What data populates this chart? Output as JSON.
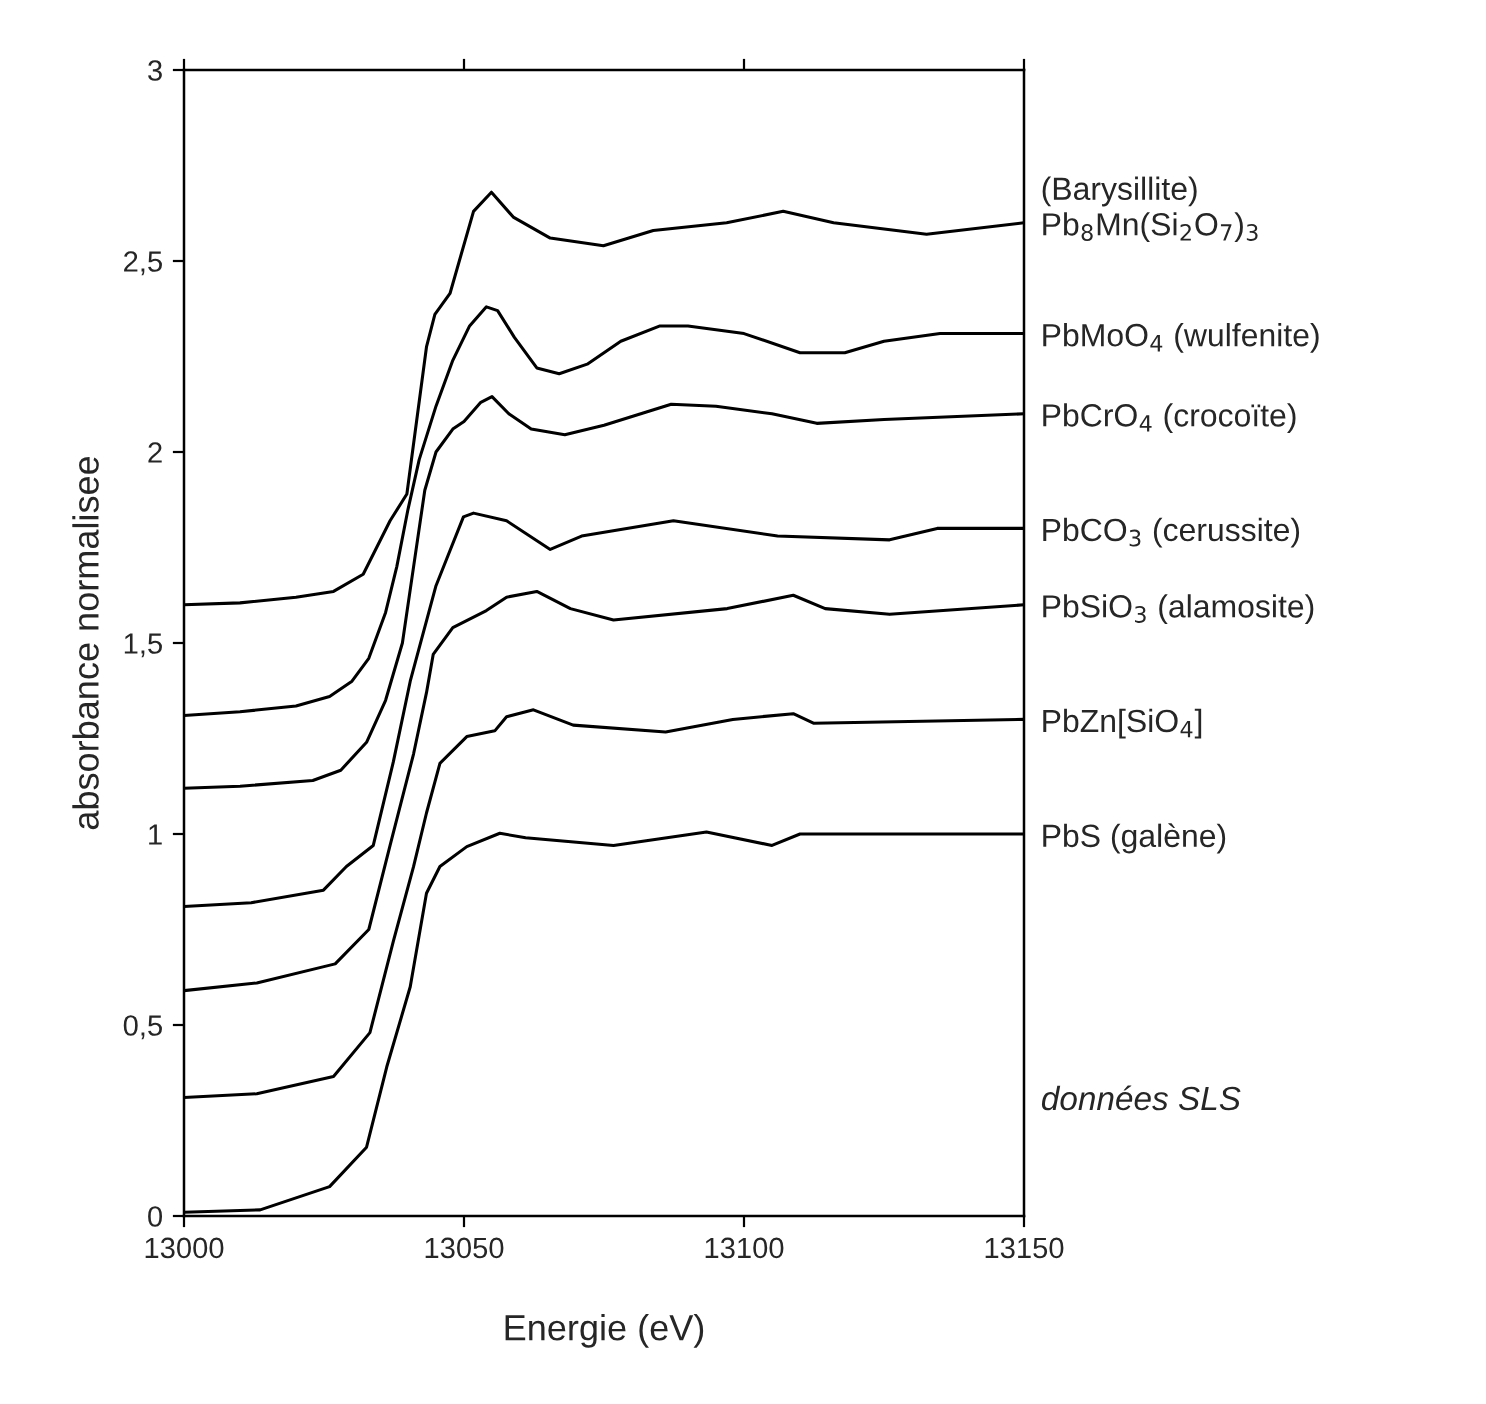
{
  "chart_data": {
    "type": "line",
    "xlabel": "Energie (eV)",
    "ylabel": "absorbance normalisee",
    "xlim": [
      13000,
      13150
    ],
    "xticks": [
      13000,
      13050,
      13100,
      13150
    ],
    "ylim": [
      0,
      3
    ],
    "yticks": [
      0,
      {
        "value": 0.5,
        "label": "0,5"
      },
      1,
      {
        "value": 1.5,
        "label": "1,5"
      },
      2,
      {
        "value": 2.5,
        "label": "2,5"
      },
      3
    ],
    "grid": false,
    "legend": false,
    "marker": "none",
    "line_style": "solid",
    "annotations": [
      "données SLS"
    ],
    "series": [
      {
        "name": "(Barysillite)\nPb$_{8}$Mn(Si$_{2}$O$_{7}$)$_{3}$",
        "color": "#000000",
        "x": [
          13000,
          13010,
          13020,
          13026.7,
          13032,
          13036.8,
          13039.8,
          13043.3,
          13044.8,
          13047.5,
          13051.7,
          13054.9,
          13058.8,
          13065.4,
          13074.9,
          13083.8,
          13096.9,
          13107,
          13116,
          13132.6,
          13150
        ],
        "values": [
          1.6,
          1.605,
          1.62,
          1.635,
          1.68,
          1.82,
          1.89,
          2.275,
          2.36,
          2.415,
          2.63,
          2.68,
          2.615,
          2.56,
          2.54,
          2.58,
          2.6,
          2.63,
          2.6,
          2.57,
          2.6
        ]
      },
      {
        "name": "PbMoO$_{4}$ (wulfenite)",
        "color": "#000000",
        "x": [
          13000,
          13010,
          13020,
          13026,
          13030,
          13033,
          13036,
          13038,
          13040,
          13042,
          13045,
          13048,
          13051,
          13054,
          13056,
          13059,
          13063,
          13067,
          13072,
          13078,
          13085,
          13090,
          13100,
          13110,
          13118,
          13125,
          13135,
          13150
        ],
        "values": [
          1.31,
          1.32,
          1.335,
          1.36,
          1.4,
          1.46,
          1.58,
          1.7,
          1.85,
          1.98,
          2.12,
          2.24,
          2.33,
          2.38,
          2.37,
          2.3,
          2.22,
          2.205,
          2.23,
          2.29,
          2.33,
          2.33,
          2.31,
          2.26,
          2.26,
          2.29,
          2.31,
          2.31
        ]
      },
      {
        "name": "PbCrO$_{4}$ (crocoïte)",
        "color": "#000000",
        "x": [
          13000,
          13010,
          13023,
          13028,
          13032.6,
          13036,
          13039,
          13041,
          13043,
          13045,
          13048,
          13050,
          13053,
          13055,
          13058,
          13062,
          13068,
          13075,
          13087,
          13095,
          13105,
          13113,
          13125,
          13150
        ],
        "values": [
          1.12,
          1.125,
          1.14,
          1.167,
          1.24,
          1.35,
          1.5,
          1.7,
          1.9,
          2.0,
          2.06,
          2.08,
          2.13,
          2.145,
          2.1,
          2.06,
          2.045,
          2.07,
          2.125,
          2.12,
          2.1,
          2.075,
          2.085,
          2.1
        ]
      },
      {
        "name": "PbCO$_{3}$ (cerussite)",
        "color": "#000000",
        "x": [
          13000,
          13012,
          13024.9,
          13029,
          13033.8,
          13037.4,
          13040.4,
          13045,
          13046.9,
          13049.9,
          13051.7,
          13057.6,
          13065.4,
          13071,
          13087.4,
          13106,
          13126,
          13134.5,
          13150
        ],
        "values": [
          0.81,
          0.82,
          0.853,
          0.915,
          0.97,
          1.19,
          1.4,
          1.65,
          1.72,
          1.83,
          1.84,
          1.82,
          1.745,
          1.78,
          1.82,
          1.78,
          1.77,
          1.8,
          1.8
        ]
      },
      {
        "name": "PbSiO$_{3}$ (alamosite)",
        "color": "#000000",
        "x": [
          13000,
          13013,
          13027,
          13033,
          13036.8,
          13041,
          13043.3,
          13044.5,
          13048,
          13054,
          13057.6,
          13063,
          13069,
          13076.7,
          13097,
          13108.8,
          13114.5,
          13126,
          13150
        ],
        "values": [
          0.59,
          0.61,
          0.66,
          0.75,
          0.97,
          1.21,
          1.37,
          1.47,
          1.54,
          1.585,
          1.62,
          1.635,
          1.59,
          1.56,
          1.59,
          1.625,
          1.59,
          1.575,
          1.6
        ]
      },
      {
        "name": "PbZn[SiO$_{4}$]",
        "color": "#000000",
        "x": [
          13000,
          13013,
          13026.7,
          13033.2,
          13037.4,
          13041,
          13043.3,
          13045.7,
          13050.5,
          13055.5,
          13057.6,
          13062.4,
          13069.5,
          13086,
          13098,
          13108.8,
          13112.4,
          13150
        ],
        "values": [
          0.31,
          0.32,
          0.365,
          0.48,
          0.72,
          0.915,
          1.055,
          1.185,
          1.255,
          1.27,
          1.307,
          1.325,
          1.285,
          1.267,
          1.3,
          1.315,
          1.29,
          1.3
        ]
      },
      {
        "name": "PbS (galène)",
        "color": "#000000",
        "x": [
          13000,
          13013.6,
          13026,
          13032.6,
          13036.2,
          13040.4,
          13043.3,
          13045.7,
          13050.5,
          13056.4,
          13061,
          13076.7,
          13093.3,
          13105,
          13110,
          13150
        ],
        "values": [
          0.01,
          0.016,
          0.077,
          0.18,
          0.39,
          0.6,
          0.845,
          0.915,
          0.967,
          1.002,
          0.99,
          0.97,
          1.005,
          0.97,
          1.0,
          1.0
        ]
      }
    ]
  }
}
